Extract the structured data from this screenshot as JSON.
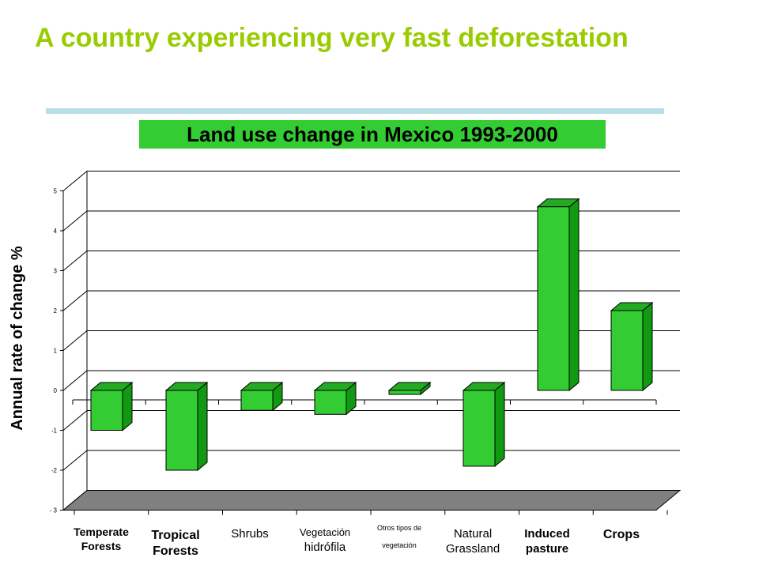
{
  "slide": {
    "title": "A country experiencing very fast deforestation"
  },
  "chart_data": {
    "type": "bar",
    "title": "Land use change in  Mexico 1993-2000",
    "ylabel": "Annual rate of change %",
    "xlabel": "",
    "categories": [
      "Temperate Forests",
      "Tropical Forests",
      "Shrubs",
      "Vegetación hidrófila",
      "Otros tipos de vegetación",
      "Natural Grassland",
      "Induced pasture",
      "Crops"
    ],
    "values": [
      -1.0,
      -2.0,
      -0.5,
      -0.6,
      -0.1,
      -1.9,
      4.6,
      2.0
    ],
    "ylim": [
      -3,
      5
    ],
    "yticks": [
      5,
      4,
      3,
      2,
      1,
      0,
      -1,
      -2,
      -3
    ],
    "ytick_labels": [
      "5",
      "4",
      "3",
      "2",
      "1",
      "0",
      "-1",
      "-2",
      "- 3"
    ],
    "grid": true,
    "legend": "none",
    "colors": {
      "bar_front": "#33cc33",
      "bar_side": "#119911",
      "bar_top": "#22aa22",
      "floor": "#808080"
    }
  }
}
